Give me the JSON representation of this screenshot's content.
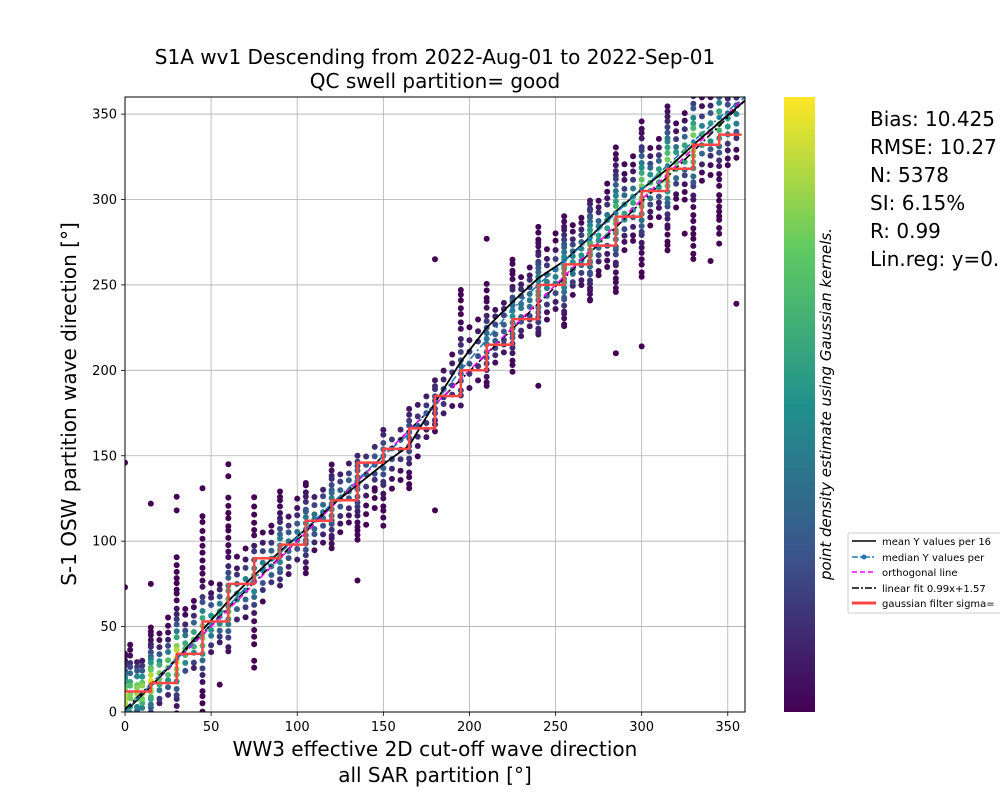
{
  "chart_data": {
    "type": "scatter",
    "title_lines": [
      "S1A wv1 Descending from 2022-Aug-01 to 2022-Sep-01",
      "QC swell partition= good"
    ],
    "xlabel_lines": [
      "WW3 effective 2D cut-off wave direction",
      "all SAR partition [°]"
    ],
    "ylabel": "S-1 OSW partition wave direction [°]",
    "xlim": [
      0,
      360
    ],
    "ylim": [
      0,
      360
    ],
    "x_ticks": [
      0,
      50,
      100,
      150,
      200,
      250,
      300,
      350
    ],
    "y_ticks": [
      0,
      50,
      100,
      150,
      200,
      250,
      300,
      350
    ],
    "x_tick_labels": [
      "0",
      "50",
      "100",
      "150",
      "200",
      "250",
      "300",
      "350"
    ],
    "y_tick_labels": [
      "0",
      "50",
      "100",
      "150",
      "200",
      "250",
      "300",
      "350"
    ],
    "grid": true,
    "colorbar": {
      "label": "point density estimate using Gaussian kernels.",
      "colormap": [
        "#440154",
        "#3b528b",
        "#21918c",
        "#5ec962",
        "#fde725"
      ]
    },
    "stats": [
      "Bias: 10.425",
      "RMSE: 10.27",
      "N: 5378",
      "SI: 6.15%",
      "R: 0.99",
      "Lin.reg: y=0."
    ],
    "legend": {
      "placement": "right",
      "entries": [
        {
          "label": "mean Y values per 16",
          "color": "#000000",
          "style": "solid"
        },
        {
          "label": "median Y values per",
          "color": "#1f77b4",
          "style": "dash-dot-marker"
        },
        {
          "label": "orthogonal line",
          "color": "#ff00ff",
          "style": "dashed"
        },
        {
          "label": "linear fit 0.99x+1.57",
          "color": "#000000",
          "style": "dash-dot"
        },
        {
          "label": "gaussian filter sigma=",
          "color": "#ff4444",
          "style": "thick"
        }
      ]
    },
    "series": [
      {
        "name": "linear fit 0.99x+1.57",
        "x": [
          0,
          360
        ],
        "y": [
          1.57,
          357.97
        ]
      },
      {
        "name": "orthogonal line",
        "x": [
          0,
          360
        ],
        "y": [
          0,
          360
        ]
      },
      {
        "name": "mean Y values per 16",
        "x": [
          0,
          15,
          30,
          45,
          60,
          75,
          90,
          105,
          120,
          135,
          150,
          165,
          180,
          195,
          210,
          225,
          240,
          255,
          270,
          285,
          300,
          315,
          330,
          345,
          360
        ],
        "y": [
          0,
          15,
          31,
          48,
          65,
          80,
          94,
          107,
          121,
          133,
          145,
          156,
          181,
          205,
          225,
          240,
          254,
          264,
          278,
          293,
          306,
          318,
          332,
          345,
          358
        ]
      },
      {
        "name": "median Y values per",
        "x": [
          0,
          15,
          30,
          45,
          60,
          75,
          90,
          105,
          120,
          135,
          150,
          165,
          180,
          195,
          210,
          225,
          240,
          255,
          270,
          285,
          300,
          315,
          330,
          345,
          360
        ],
        "y": [
          0,
          16,
          31,
          46,
          62,
          78,
          93,
          107,
          122,
          136,
          150,
          163,
          181,
          200,
          218,
          236,
          250,
          264,
          277,
          292,
          306,
          320,
          334,
          348,
          360
        ]
      },
      {
        "name": "gaussian filter sigma=",
        "x": [
          0,
          15,
          15,
          30,
          30,
          45,
          45,
          60,
          60,
          75,
          75,
          90,
          90,
          105,
          105,
          120,
          120,
          135,
          135,
          150,
          150,
          165,
          165,
          180,
          180,
          195,
          195,
          210,
          210,
          225,
          225,
          240,
          240,
          255,
          255,
          270,
          270,
          285,
          285,
          300,
          300,
          315,
          315,
          330,
          330,
          345,
          345,
          358
        ],
        "y": [
          12,
          12,
          17,
          17,
          34,
          34,
          53,
          53,
          75,
          75,
          90,
          90,
          98,
          98,
          112,
          112,
          124,
          124,
          146,
          146,
          154,
          154,
          166,
          166,
          185,
          185,
          200,
          200,
          215,
          215,
          230,
          230,
          250,
          250,
          262,
          262,
          273,
          273,
          290,
          290,
          305,
          305,
          318,
          318,
          332,
          332,
          338,
          338
        ]
      }
    ],
    "scatter_columns": [
      {
        "x": 0,
        "ymin": 0,
        "ymax": 35,
        "center": 8,
        "spread": 10,
        "n": 18,
        "peak": 0.9
      },
      {
        "x": 3,
        "ymin": 0,
        "ymax": 40,
        "center": 10,
        "spread": 10,
        "n": 12,
        "peak": 0.8
      },
      {
        "x": 7,
        "ymin": 0,
        "ymax": 30,
        "center": 12,
        "spread": 8,
        "n": 10,
        "peak": 0.85
      },
      {
        "x": 10,
        "ymin": 2,
        "ymax": 30,
        "center": 12,
        "spread": 8,
        "n": 10,
        "peak": 0.9
      },
      {
        "x": 15,
        "ymin": 0,
        "ymax": 50,
        "center": 18,
        "spread": 10,
        "n": 22,
        "peak": 0.95
      },
      {
        "x": 20,
        "ymin": 5,
        "ymax": 45,
        "center": 22,
        "spread": 8,
        "n": 12,
        "peak": 0.8
      },
      {
        "x": 25,
        "ymin": 10,
        "ymax": 55,
        "center": 26,
        "spread": 8,
        "n": 12,
        "peak": 0.8
      },
      {
        "x": 30,
        "ymin": 0,
        "ymax": 90,
        "center": 32,
        "spread": 12,
        "n": 26,
        "peak": 0.95
      },
      {
        "x": 35,
        "ymin": 25,
        "ymax": 60,
        "center": 36,
        "spread": 8,
        "n": 10,
        "peak": 0.7
      },
      {
        "x": 40,
        "ymin": 25,
        "ymax": 65,
        "center": 42,
        "spread": 8,
        "n": 10,
        "peak": 0.7
      },
      {
        "x": 45,
        "ymin": 0,
        "ymax": 115,
        "center": 46,
        "spread": 12,
        "n": 28,
        "peak": 0.8
      },
      {
        "x": 50,
        "ymin": 35,
        "ymax": 75,
        "center": 52,
        "spread": 8,
        "n": 10,
        "peak": 0.6
      },
      {
        "x": 55,
        "ymin": 40,
        "ymax": 75,
        "center": 57,
        "spread": 8,
        "n": 10,
        "peak": 0.6
      },
      {
        "x": 60,
        "ymin": 35,
        "ymax": 125,
        "center": 63,
        "spread": 12,
        "n": 24,
        "peak": 0.7
      },
      {
        "x": 65,
        "ymin": 55,
        "ymax": 90,
        "center": 68,
        "spread": 8,
        "n": 8,
        "peak": 0.5
      },
      {
        "x": 70,
        "ymin": 55,
        "ymax": 95,
        "center": 73,
        "spread": 8,
        "n": 8,
        "peak": 0.5
      },
      {
        "x": 75,
        "ymin": 40,
        "ymax": 125,
        "center": 78,
        "spread": 10,
        "n": 20,
        "peak": 0.6
      },
      {
        "x": 80,
        "ymin": 65,
        "ymax": 105,
        "center": 84,
        "spread": 8,
        "n": 8,
        "peak": 0.45
      },
      {
        "x": 85,
        "ymin": 75,
        "ymax": 110,
        "center": 88,
        "spread": 8,
        "n": 8,
        "peak": 0.45
      },
      {
        "x": 90,
        "ymin": 75,
        "ymax": 130,
        "center": 94,
        "spread": 10,
        "n": 18,
        "peak": 0.55
      },
      {
        "x": 95,
        "ymin": 80,
        "ymax": 115,
        "center": 98,
        "spread": 8,
        "n": 8,
        "peak": 0.4
      },
      {
        "x": 100,
        "ymin": 90,
        "ymax": 125,
        "center": 103,
        "spread": 8,
        "n": 8,
        "peak": 0.4
      },
      {
        "x": 105,
        "ymin": 82,
        "ymax": 135,
        "center": 107,
        "spread": 10,
        "n": 18,
        "peak": 0.5
      },
      {
        "x": 110,
        "ymin": 95,
        "ymax": 125,
        "center": 112,
        "spread": 8,
        "n": 8,
        "peak": 0.4
      },
      {
        "x": 115,
        "ymin": 100,
        "ymax": 130,
        "center": 117,
        "spread": 8,
        "n": 8,
        "peak": 0.4
      },
      {
        "x": 120,
        "ymin": 95,
        "ymax": 145,
        "center": 121,
        "spread": 10,
        "n": 18,
        "peak": 0.45
      },
      {
        "x": 125,
        "ymin": 105,
        "ymax": 140,
        "center": 126,
        "spread": 8,
        "n": 8,
        "peak": 0.35
      },
      {
        "x": 130,
        "ymin": 110,
        "ymax": 145,
        "center": 131,
        "spread": 8,
        "n": 8,
        "peak": 0.35
      },
      {
        "x": 135,
        "ymin": 100,
        "ymax": 150,
        "center": 134,
        "spread": 10,
        "n": 18,
        "peak": 0.4
      },
      {
        "x": 140,
        "ymin": 110,
        "ymax": 150,
        "center": 140,
        "spread": 8,
        "n": 8,
        "peak": 0.3
      },
      {
        "x": 145,
        "ymin": 120,
        "ymax": 155,
        "center": 145,
        "spread": 8,
        "n": 8,
        "peak": 0.3
      },
      {
        "x": 150,
        "ymin": 110,
        "ymax": 165,
        "center": 148,
        "spread": 10,
        "n": 16,
        "peak": 0.35
      },
      {
        "x": 155,
        "ymin": 130,
        "ymax": 160,
        "center": 152,
        "spread": 8,
        "n": 6,
        "peak": 0.25
      },
      {
        "x": 160,
        "ymin": 135,
        "ymax": 165,
        "center": 156,
        "spread": 8,
        "n": 6,
        "peak": 0.25
      },
      {
        "x": 165,
        "ymin": 130,
        "ymax": 178,
        "center": 160,
        "spread": 10,
        "n": 14,
        "peak": 0.3
      },
      {
        "x": 170,
        "ymin": 150,
        "ymax": 180,
        "center": 168,
        "spread": 8,
        "n": 6,
        "peak": 0.2
      },
      {
        "x": 175,
        "ymin": 160,
        "ymax": 185,
        "center": 174,
        "spread": 8,
        "n": 6,
        "peak": 0.2
      },
      {
        "x": 180,
        "ymin": 165,
        "ymax": 195,
        "center": 181,
        "spread": 8,
        "n": 10,
        "peak": 0.25
      },
      {
        "x": 185,
        "ymin": 175,
        "ymax": 200,
        "center": 186,
        "spread": 8,
        "n": 6,
        "peak": 0.2
      },
      {
        "x": 190,
        "ymin": 180,
        "ymax": 210,
        "center": 193,
        "spread": 8,
        "n": 6,
        "peak": 0.2
      },
      {
        "x": 195,
        "ymin": 180,
        "ymax": 245,
        "center": 200,
        "spread": 12,
        "n": 16,
        "peak": 0.3
      },
      {
        "x": 200,
        "ymin": 190,
        "ymax": 225,
        "center": 205,
        "spread": 8,
        "n": 6,
        "peak": 0.25
      },
      {
        "x": 205,
        "ymin": 195,
        "ymax": 230,
        "center": 210,
        "spread": 8,
        "n": 6,
        "peak": 0.25
      },
      {
        "x": 210,
        "ymin": 190,
        "ymax": 250,
        "center": 216,
        "spread": 10,
        "n": 18,
        "peak": 0.4
      },
      {
        "x": 215,
        "ymin": 205,
        "ymax": 235,
        "center": 220,
        "spread": 8,
        "n": 8,
        "peak": 0.3
      },
      {
        "x": 220,
        "ymin": 210,
        "ymax": 240,
        "center": 225,
        "spread": 8,
        "n": 8,
        "peak": 0.3
      },
      {
        "x": 225,
        "ymin": 200,
        "ymax": 265,
        "center": 230,
        "spread": 10,
        "n": 22,
        "peak": 0.5
      },
      {
        "x": 230,
        "ymin": 220,
        "ymax": 255,
        "center": 236,
        "spread": 8,
        "n": 10,
        "peak": 0.4
      },
      {
        "x": 235,
        "ymin": 225,
        "ymax": 260,
        "center": 241,
        "spread": 8,
        "n": 10,
        "peak": 0.4
      },
      {
        "x": 240,
        "ymin": 220,
        "ymax": 280,
        "center": 246,
        "spread": 12,
        "n": 24,
        "peak": 0.55
      },
      {
        "x": 245,
        "ymin": 230,
        "ymax": 270,
        "center": 250,
        "spread": 8,
        "n": 10,
        "peak": 0.45
      },
      {
        "x": 250,
        "ymin": 235,
        "ymax": 280,
        "center": 255,
        "spread": 8,
        "n": 10,
        "peak": 0.45
      },
      {
        "x": 255,
        "ymin": 225,
        "ymax": 290,
        "center": 258,
        "spread": 12,
        "n": 26,
        "peak": 0.6
      },
      {
        "x": 260,
        "ymin": 245,
        "ymax": 285,
        "center": 263,
        "spread": 8,
        "n": 12,
        "peak": 0.5
      },
      {
        "x": 265,
        "ymin": 250,
        "ymax": 290,
        "center": 268,
        "spread": 8,
        "n": 12,
        "peak": 0.5
      },
      {
        "x": 270,
        "ymin": 240,
        "ymax": 300,
        "center": 274,
        "spread": 12,
        "n": 28,
        "peak": 0.65
      },
      {
        "x": 275,
        "ymin": 255,
        "ymax": 300,
        "center": 279,
        "spread": 8,
        "n": 12,
        "peak": 0.55
      },
      {
        "x": 280,
        "ymin": 260,
        "ymax": 310,
        "center": 284,
        "spread": 8,
        "n": 12,
        "peak": 0.55
      },
      {
        "x": 285,
        "ymin": 245,
        "ymax": 330,
        "center": 290,
        "spread": 14,
        "n": 28,
        "peak": 0.7
      },
      {
        "x": 290,
        "ymin": 270,
        "ymax": 320,
        "center": 294,
        "spread": 8,
        "n": 12,
        "peak": 0.6
      },
      {
        "x": 295,
        "ymin": 275,
        "ymax": 325,
        "center": 299,
        "spread": 8,
        "n": 12,
        "peak": 0.6
      },
      {
        "x": 300,
        "ymin": 255,
        "ymax": 345,
        "center": 305,
        "spread": 14,
        "n": 28,
        "peak": 0.8
      },
      {
        "x": 305,
        "ymin": 285,
        "ymax": 330,
        "center": 309,
        "spread": 8,
        "n": 12,
        "peak": 0.65
      },
      {
        "x": 310,
        "ymin": 290,
        "ymax": 335,
        "center": 313,
        "spread": 8,
        "n": 12,
        "peak": 0.65
      },
      {
        "x": 315,
        "ymin": 270,
        "ymax": 355,
        "center": 318,
        "spread": 14,
        "n": 28,
        "peak": 0.85
      },
      {
        "x": 320,
        "ymin": 295,
        "ymax": 345,
        "center": 322,
        "spread": 8,
        "n": 12,
        "peak": 0.7
      },
      {
        "x": 325,
        "ymin": 300,
        "ymax": 350,
        "center": 327,
        "spread": 8,
        "n": 12,
        "peak": 0.7
      },
      {
        "x": 330,
        "ymin": 265,
        "ymax": 360,
        "center": 332,
        "spread": 14,
        "n": 26,
        "peak": 0.85
      },
      {
        "x": 335,
        "ymin": 310,
        "ymax": 360,
        "center": 336,
        "spread": 8,
        "n": 10,
        "peak": 0.65
      },
      {
        "x": 340,
        "ymin": 315,
        "ymax": 360,
        "center": 340,
        "spread": 8,
        "n": 10,
        "peak": 0.65
      },
      {
        "x": 345,
        "ymin": 275,
        "ymax": 360,
        "center": 345,
        "spread": 12,
        "n": 22,
        "peak": 0.7
      },
      {
        "x": 350,
        "ymin": 320,
        "ymax": 360,
        "center": 345,
        "spread": 8,
        "n": 10,
        "peak": 0.55
      },
      {
        "x": 355,
        "ymin": 325,
        "ymax": 360,
        "center": 348,
        "spread": 8,
        "n": 8,
        "peak": 0.45
      }
    ],
    "scatter_outliers": [
      {
        "x": 0,
        "y": 146
      },
      {
        "x": 0,
        "y": 73
      },
      {
        "x": 15,
        "y": 122
      },
      {
        "x": 15,
        "y": 75
      },
      {
        "x": 30,
        "y": 126
      },
      {
        "x": 30,
        "y": 118
      },
      {
        "x": 45,
        "y": 131
      },
      {
        "x": 55,
        "y": 16
      },
      {
        "x": 60,
        "y": 145
      },
      {
        "x": 60,
        "y": 138
      },
      {
        "x": 75,
        "y": 30
      },
      {
        "x": 75,
        "y": 26
      },
      {
        "x": 135,
        "y": 77
      },
      {
        "x": 145,
        "y": 131
      },
      {
        "x": 180,
        "y": 118
      },
      {
        "x": 180,
        "y": 265
      },
      {
        "x": 195,
        "y": 247
      },
      {
        "x": 210,
        "y": 277
      },
      {
        "x": 240,
        "y": 191
      },
      {
        "x": 240,
        "y": 284
      },
      {
        "x": 285,
        "y": 210
      },
      {
        "x": 300,
        "y": 214
      },
      {
        "x": 345,
        "y": 293
      },
      {
        "x": 355,
        "y": 239
      },
      {
        "x": 340,
        "y": 264
      },
      {
        "x": 325,
        "y": 280
      }
    ]
  }
}
